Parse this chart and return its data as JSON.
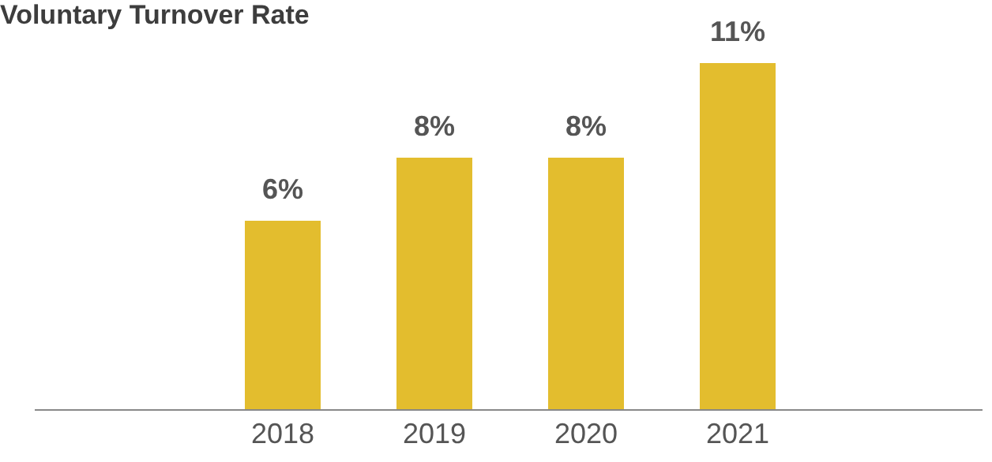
{
  "chart_data": {
    "type": "bar",
    "title": "Voluntary Turnover Rate",
    "categories": [
      "2018",
      "2019",
      "2020",
      "2021"
    ],
    "values": [
      6,
      8,
      8,
      11
    ],
    "value_labels": [
      "6%",
      "8%",
      "8%",
      "11%"
    ],
    "color": "#e3bd2e"
  }
}
